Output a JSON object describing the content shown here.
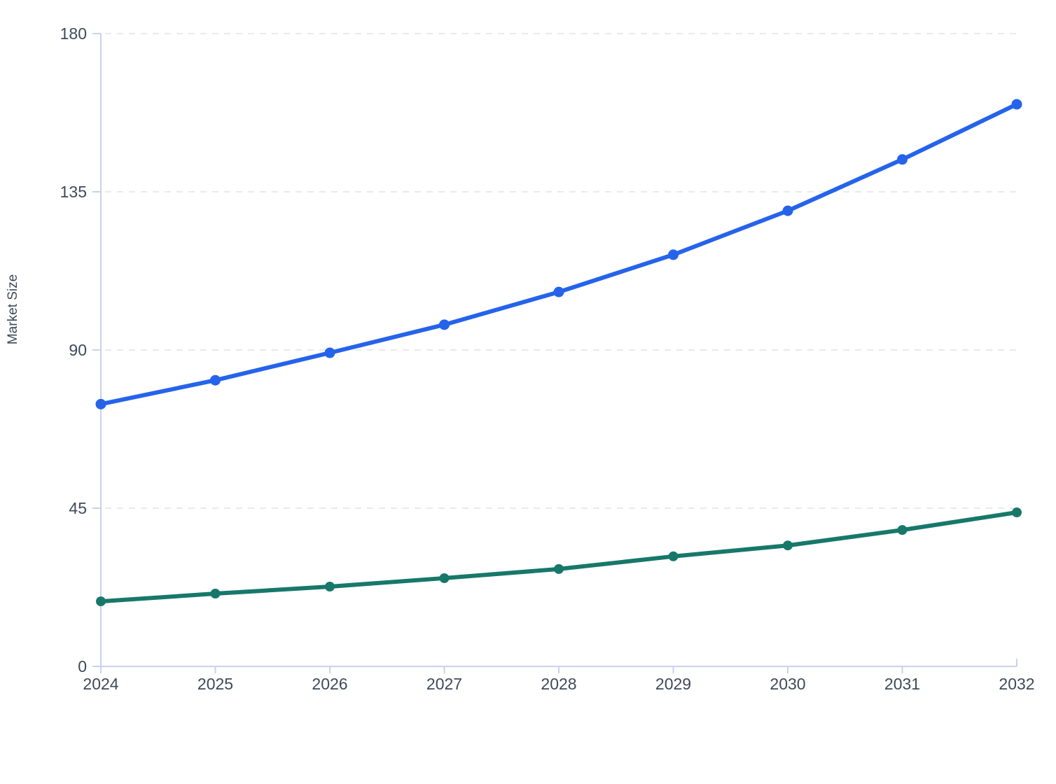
{
  "chart_data": {
    "type": "line",
    "title": "",
    "xlabel": "",
    "ylabel": "Market Size",
    "x": [
      2024,
      2025,
      2026,
      2027,
      2028,
      2029,
      2030,
      2031,
      2032
    ],
    "x_tick_labels": [
      "2024",
      "2025",
      "2026",
      "2027",
      "2028",
      "2029",
      "2030",
      "2031",
      "2032"
    ],
    "yticks": [
      0,
      45,
      90,
      135,
      180
    ],
    "ytick_labels": [
      "0",
      "45",
      "90",
      "135",
      "180"
    ],
    "ylim": [
      0,
      180
    ],
    "grid": "horizontal-dashed",
    "legend_position": "none",
    "series": [
      {
        "name": "",
        "color": "#2563eb",
        "values": [
          74.6,
          81.4,
          89.2,
          97.2,
          106.5,
          117.1,
          129.6,
          144.2,
          159.9
        ]
      },
      {
        "name": "",
        "color": "#17786a",
        "values": [
          18.5,
          20.7,
          22.7,
          25.1,
          27.7,
          31.3,
          34.4,
          38.8,
          43.8
        ]
      }
    ]
  },
  "style_colors": {
    "axis_line": "#c9d2ec",
    "grid_line": "#e0e3e9",
    "tick_label": "#3e4a59",
    "background": "#ffffff"
  }
}
